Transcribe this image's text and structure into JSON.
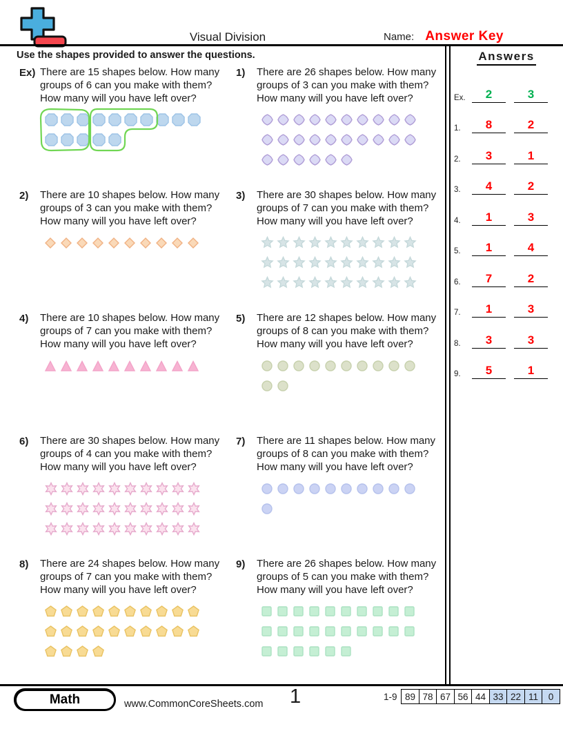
{
  "header": {
    "title": "Visual Division",
    "name_label": "Name:",
    "name_value": "Answer Key",
    "instructions": "Use the shapes provided to answer the questions.",
    "answers_title": "Answers"
  },
  "problems": [
    {
      "label": "Ex)",
      "total": 15,
      "group_size": 6,
      "lines": [
        "There are 15 shapes below. How many",
        "groups of 6 can you make with them?",
        "How many will you have left over?"
      ],
      "shape": "octagon",
      "fill": "#BDD7EE",
      "stroke": "#9DC3E6",
      "rows": [
        10,
        5
      ],
      "grouped": true,
      "group_color": "#70D653"
    },
    {
      "label": "1)",
      "total": 26,
      "group_size": 3,
      "lines": [
        "There are 26 shapes below. How many",
        "groups of 3 can you make with them?",
        "How many will you have left over?"
      ],
      "shape": "quatrefoil",
      "fill": "#DBDAF5",
      "stroke": "#AF9CD6",
      "rows": [
        10,
        10,
        6
      ]
    },
    {
      "label": "2)",
      "total": 10,
      "group_size": 3,
      "lines": [
        "There are 10 shapes below. How many",
        "groups of 3 can you make with them?",
        "How many will you have left over?"
      ],
      "shape": "diamond",
      "fill": "#FAD9B8",
      "stroke": "#F0B183",
      "rows": [
        10
      ]
    },
    {
      "label": "3)",
      "total": 30,
      "group_size": 7,
      "lines": [
        "There are 30 shapes below. How many",
        "groups of 7 can you make with them?",
        "How many will you have left over?"
      ],
      "shape": "star5",
      "fill": "#D7E4E6",
      "stroke": "#C4D8DA",
      "rows": [
        10,
        10,
        10
      ]
    },
    {
      "label": "4)",
      "total": 10,
      "group_size": 7,
      "lines": [
        "There are 10 shapes below. How many",
        "groups of 7 can you make with them?",
        "How many will you have left over?"
      ],
      "shape": "triangle",
      "fill": "#F7B3D2",
      "stroke": "#F3A3C8",
      "rows": [
        10
      ]
    },
    {
      "label": "5)",
      "total": 12,
      "group_size": 8,
      "lines": [
        "There are 12 shapes below. How many",
        "groups of 8 can you make with them?",
        "How many will you have left over?"
      ],
      "shape": "circle",
      "fill": "#DCE1CA",
      "stroke": "#C6D0AC",
      "rows": [
        10,
        2
      ]
    },
    {
      "label": "6)",
      "total": 30,
      "group_size": 4,
      "lines": [
        "There are 30 shapes below. How many",
        "groups of 4 can you make with them?",
        "How many will you have left over?"
      ],
      "shape": "star6",
      "fill": "#FBE2EE",
      "stroke": "#E6A8CB",
      "rows": [
        10,
        10,
        10
      ]
    },
    {
      "label": "7)",
      "total": 11,
      "group_size": 8,
      "lines": [
        "There are 11 shapes below. How many",
        "groups of 8 can you make with them?",
        "How many will you have left over?"
      ],
      "shape": "circle",
      "fill": "#CBD3F4",
      "stroke": "#B5C1EC",
      "rows": [
        10,
        1
      ]
    },
    {
      "label": "8)",
      "total": 24,
      "group_size": 7,
      "lines": [
        "There are 24 shapes below. How many",
        "groups of 7 can you make with them?",
        "How many will you have left over?"
      ],
      "shape": "pentagon",
      "fill": "#F8DB94",
      "stroke": "#E9C262",
      "rows": [
        10,
        10,
        4
      ]
    },
    {
      "label": "9)",
      "total": 26,
      "group_size": 5,
      "lines": [
        "There are 26 shapes below. How many",
        "groups of 5 can you make with them?",
        "How many will you have left over?"
      ],
      "shape": "square",
      "fill": "#C5EFD4",
      "stroke": "#ABE2C2",
      "rows": [
        10,
        10,
        6
      ]
    }
  ],
  "answers": [
    {
      "label": "Ex.",
      "groups": "2",
      "remainder": "3",
      "color": "#00B050"
    },
    {
      "label": "1.",
      "groups": "8",
      "remainder": "2",
      "color": "#FF0000"
    },
    {
      "label": "2.",
      "groups": "3",
      "remainder": "1",
      "color": "#FF0000"
    },
    {
      "label": "3.",
      "groups": "4",
      "remainder": "2",
      "color": "#FF0000"
    },
    {
      "label": "4.",
      "groups": "1",
      "remainder": "3",
      "color": "#FF0000"
    },
    {
      "label": "5.",
      "groups": "1",
      "remainder": "4",
      "color": "#FF0000"
    },
    {
      "label": "6.",
      "groups": "7",
      "remainder": "2",
      "color": "#FF0000"
    },
    {
      "label": "7.",
      "groups": "1",
      "remainder": "3",
      "color": "#FF0000"
    },
    {
      "label": "8.",
      "groups": "3",
      "remainder": "3",
      "color": "#FF0000"
    },
    {
      "label": "9.",
      "groups": "5",
      "remainder": "1",
      "color": "#FF0000"
    }
  ],
  "logo_colors": {
    "plus_blue": "#4AAEDE",
    "minus_red": "#F5464E"
  },
  "footer": {
    "subject": "Math",
    "site": "www.CommonCoreSheets.com",
    "page": "1",
    "score_label": "1-9",
    "score_cells": [
      {
        "value": "89",
        "highlight": false
      },
      {
        "value": "78",
        "highlight": false
      },
      {
        "value": "67",
        "highlight": false
      },
      {
        "value": "56",
        "highlight": false
      },
      {
        "value": "44",
        "highlight": false
      },
      {
        "value": "33",
        "highlight": true
      },
      {
        "value": "22",
        "highlight": true
      },
      {
        "value": "11",
        "highlight": true
      },
      {
        "value": "0",
        "highlight": true
      }
    ]
  }
}
